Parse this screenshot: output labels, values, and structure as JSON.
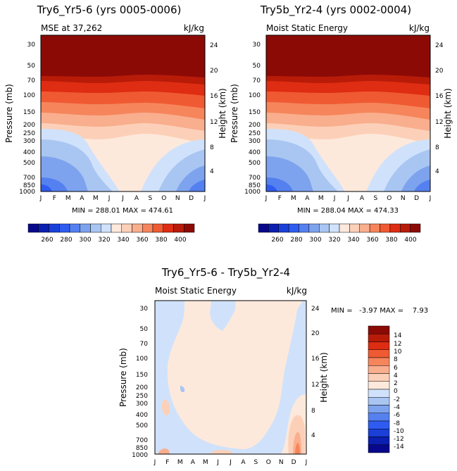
{
  "chart_data": [
    {
      "type": "heatmap",
      "title": "Try6_Yr5-6 (yrs 0005-0006)",
      "subtitle_left": "MSE at 37,262",
      "subtitle_right": "kJ/kg",
      "ylabel": "Pressure (mb)",
      "y2label": "Height (km)",
      "x_ticks": [
        "J",
        "F",
        "M",
        "A",
        "M",
        "J",
        "J",
        "A",
        "S",
        "O",
        "N",
        "D",
        "J"
      ],
      "y_ticks": [
        "30",
        "50",
        "70",
        "100",
        "150",
        "200",
        "250",
        "300",
        "400",
        "500",
        "700",
        "850",
        "1000"
      ],
      "y2_ticks": [
        "24",
        "20",
        "16",
        "12",
        "8",
        "4"
      ],
      "stats": "MIN = 288.01 MAX = 474.61",
      "colorbar_labels": [
        "260",
        "280",
        "300",
        "320",
        "340",
        "360",
        "380",
        "400"
      ]
    },
    {
      "type": "heatmap",
      "title": "Try5b_Yr2-4 (yrs 0002-0004)",
      "subtitle_left": "Moist Static Energy",
      "subtitle_right": "kJ/kg",
      "ylabel": "Pressure (mb)",
      "y2label": "Height (km)",
      "x_ticks": [
        "J",
        "F",
        "M",
        "A",
        "M",
        "J",
        "J",
        "A",
        "S",
        "O",
        "N",
        "D",
        "J"
      ],
      "y_ticks": [
        "30",
        "50",
        "70",
        "100",
        "150",
        "200",
        "250",
        "300",
        "400",
        "500",
        "700",
        "850",
        "1000"
      ],
      "y2_ticks": [
        "24",
        "20",
        "16",
        "12",
        "8",
        "4"
      ],
      "stats": "MIN = 288.04 MAX = 474.33",
      "colorbar_labels": [
        "260",
        "280",
        "300",
        "320",
        "340",
        "360",
        "380",
        "400"
      ]
    },
    {
      "type": "heatmap",
      "title": "Try6_Yr5-6 - Try5b_Yr2-4",
      "subtitle_left": "Moist Static Energy",
      "subtitle_right": "kJ/kg",
      "ylabel": "Pressure (mb)",
      "y2label": "Height (km)",
      "x_ticks": [
        "J",
        "F",
        "M",
        "A",
        "M",
        "J",
        "J",
        "A",
        "S",
        "O",
        "N",
        "D",
        "J"
      ],
      "y_ticks": [
        "30",
        "50",
        "70",
        "100",
        "150",
        "200",
        "250",
        "300",
        "400",
        "500",
        "700",
        "850",
        "1000"
      ],
      "y2_ticks": [
        "24",
        "20",
        "16",
        "12",
        "8",
        "4"
      ],
      "stats": "MIN =   -3.97 MAX =    7.93",
      "colorbar_labels": [
        "14",
        "12",
        "10",
        "8",
        "6",
        "4",
        "2",
        "0",
        "-2",
        "-4",
        "-6",
        "-8",
        "-10",
        "-12",
        "-14"
      ]
    }
  ],
  "colors": {
    "seq": [
      "#08088c",
      "#0b1fb0",
      "#1a40d8",
      "#2f5cf0",
      "#5580f0",
      "#7ea3ee",
      "#a9c6f2",
      "#d0e2fb",
      "#fde9dc",
      "#fcd0b8",
      "#f9ae8e",
      "#f6855c",
      "#f05a32",
      "#de2d12",
      "#b81b08",
      "#8c0a06"
    ],
    "diff": [
      "#8c0a06",
      "#b81b08",
      "#de2d12",
      "#f05a32",
      "#f6855c",
      "#f9ae8e",
      "#fcd0b8",
      "#fde9dc",
      "#d0e2fb",
      "#a9c6f2",
      "#7ea3ee",
      "#5580f0",
      "#2f5cf0",
      "#1a40d8",
      "#0b1fb0",
      "#08088c"
    ]
  }
}
